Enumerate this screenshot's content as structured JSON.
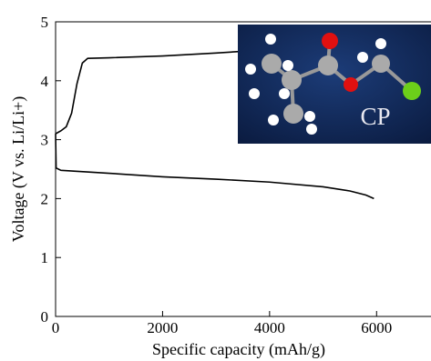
{
  "chart_data": {
    "type": "line",
    "x_label": "Specific capacity (mAh/g)",
    "y_label": "Voltage (V vs. Li/Li+)",
    "inset_label": "CP",
    "xlim": [
      0,
      7000
    ],
    "xticks": [
      0,
      2000,
      4000,
      6000
    ],
    "ylim": [
      0,
      5
    ],
    "yticks": [
      0,
      1,
      2,
      3,
      4,
      5
    ],
    "series": [
      {
        "color": "#000000",
        "x": [
          0,
          100,
          200,
          300,
          400,
          500,
          600,
          1000,
          2000,
          3000,
          3500
        ],
        "values": [
          3.1,
          3.15,
          3.22,
          3.45,
          3.95,
          4.3,
          4.38,
          4.39,
          4.42,
          4.47,
          4.5
        ]
      },
      {
        "color": "#000000",
        "x": [
          0,
          10,
          100,
          1000,
          2000,
          3000,
          4000,
          5000,
          5500,
          5800,
          5950
        ],
        "values": [
          3.1,
          2.52,
          2.48,
          2.43,
          2.37,
          2.33,
          2.28,
          2.2,
          2.13,
          2.06,
          2.0
        ]
      }
    ]
  }
}
